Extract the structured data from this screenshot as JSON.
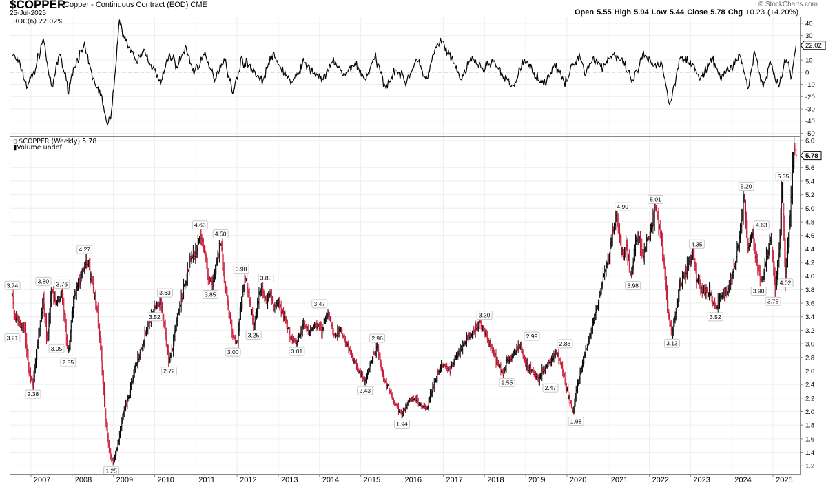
{
  "header": {
    "symbol": "$COPPER",
    "name": "Copper - Continuous Contract (EOD)",
    "exchange": "CME",
    "date": "25-Jul-2025",
    "open_label": "Open",
    "open": "5.55",
    "high_label": "High",
    "high": "5.94",
    "low_label": "Low",
    "low": "5.44",
    "close_label": "Close",
    "close": "5.78",
    "chg_label": "Chg",
    "chg": "+0.23 (+4.20%)",
    "brand": "© StockCharts.com"
  },
  "chart_data": [
    {
      "type": "line",
      "panel": "indicator",
      "title": "ROC(6) 22.02%",
      "last_value": "22.02",
      "ylim": [
        -52,
        45
      ],
      "y_ticks": [
        40,
        30,
        20,
        10,
        0,
        -10,
        -20,
        -30,
        -40,
        -50
      ],
      "y_tick_labels": [
        "40",
        "30",
        "20",
        "10",
        "0",
        "-10",
        "-20",
        "-30",
        "-40",
        "-50"
      ],
      "zero_line": "dashed",
      "x": [
        2006.55,
        2006.75,
        2006.9,
        2007.1,
        2007.3,
        2007.5,
        2007.7,
        2007.9,
        2008.1,
        2008.3,
        2008.5,
        2008.65,
        2008.75,
        2008.85,
        2008.95,
        2009.05,
        2009.15,
        2009.35,
        2009.55,
        2009.75,
        2009.95,
        2010.15,
        2010.35,
        2010.55,
        2010.75,
        2010.95,
        2011.2,
        2011.45,
        2011.7,
        2011.9,
        2012.1,
        2012.35,
        2012.6,
        2012.85,
        2013.1,
        2013.35,
        2013.6,
        2013.85,
        2014.1,
        2014.35,
        2014.6,
        2014.85,
        2015.1,
        2015.35,
        2015.6,
        2015.85,
        2016.1,
        2016.35,
        2016.6,
        2016.8,
        2016.95,
        2017.2,
        2017.45,
        2017.7,
        2017.95,
        2018.2,
        2018.45,
        2018.7,
        2018.95,
        2019.2,
        2019.45,
        2019.7,
        2019.95,
        2020.15,
        2020.3,
        2020.45,
        2020.65,
        2020.85,
        2021.1,
        2021.35,
        2021.6,
        2021.85,
        2022.1,
        2022.3,
        2022.5,
        2022.75,
        2023.0,
        2023.25,
        2023.5,
        2023.75,
        2024.0,
        2024.2,
        2024.4,
        2024.55,
        2024.75,
        2024.95,
        2025.15,
        2025.3,
        2025.45,
        2025.56
      ],
      "y": [
        15,
        5,
        -12,
        2,
        28,
        -15,
        16,
        -14,
        10,
        20,
        -5,
        -15,
        -25,
        -45,
        -35,
        5,
        42,
        22,
        8,
        18,
        4,
        -10,
        15,
        5,
        20,
        0,
        14,
        -5,
        12,
        -18,
        10,
        4,
        -8,
        14,
        2,
        -10,
        8,
        0,
        -6,
        10,
        -4,
        8,
        -6,
        12,
        -12,
        3,
        -8,
        10,
        -6,
        18,
        26,
        10,
        -6,
        12,
        2,
        10,
        -4,
        -12,
        10,
        0,
        -10,
        7,
        -10,
        6,
        14,
        0,
        12,
        4,
        15,
        8,
        -8,
        14,
        5,
        8,
        -28,
        14,
        8,
        -6,
        10,
        -4,
        5,
        14,
        -14,
        18,
        -12,
        8,
        -14,
        12,
        -2,
        22.02
      ]
    },
    {
      "type": "ohlc",
      "panel": "price",
      "title": "$COPPER (Weekly) 5.78",
      "volume_legend": "Volume undef",
      "last_value": "5.78",
      "ylim": [
        1.08,
        6.05
      ],
      "y_ticks": [
        6.0,
        5.8,
        5.6,
        5.4,
        5.2,
        5.0,
        4.8,
        4.6,
        4.4,
        4.2,
        4.0,
        3.8,
        3.6,
        3.4,
        3.2,
        3.0,
        2.8,
        2.6,
        2.4,
        2.2,
        2.0,
        1.8,
        1.6,
        1.4,
        1.2
      ],
      "y_tick_labels": [
        "6.0",
        "5.8",
        "5.6",
        "5.4",
        "5.2",
        "5.0",
        "4.8",
        "4.6",
        "4.4",
        "4.2",
        "4.0",
        "3.8",
        "3.6",
        "3.4",
        "3.2",
        "3.0",
        "2.8",
        "2.6",
        "2.4",
        "2.2",
        "2.0",
        "1.8",
        "1.6",
        "1.4",
        "1.2"
      ],
      "x_ticks": [
        2007,
        2008,
        2009,
        2010,
        2011,
        2012,
        2013,
        2014,
        2015,
        2016,
        2017,
        2018,
        2019,
        2020,
        2021,
        2022,
        2023,
        2024,
        2025
      ],
      "x_tick_labels": [
        "2007",
        "2008",
        "2009",
        "2010",
        "2011",
        "2012",
        "2013",
        "2014",
        "2015",
        "2016",
        "2017",
        "2018",
        "2019",
        "2020",
        "2021",
        "2022",
        "2023",
        "2024",
        "2025"
      ],
      "x": [
        2006.55,
        2006.6,
        2006.85,
        2006.95,
        2007.05,
        2007.15,
        2007.3,
        2007.4,
        2007.5,
        2007.62,
        2007.75,
        2007.9,
        2008.05,
        2008.2,
        2008.35,
        2008.5,
        2008.62,
        2008.72,
        2008.8,
        2008.88,
        2008.95,
        2009.0,
        2009.1,
        2009.25,
        2009.4,
        2009.55,
        2009.7,
        2009.85,
        2010.0,
        2010.15,
        2010.25,
        2010.35,
        2010.45,
        2010.55,
        2010.7,
        2010.85,
        2011.0,
        2011.1,
        2011.2,
        2011.3,
        2011.4,
        2011.5,
        2011.6,
        2011.7,
        2011.8,
        2011.9,
        2012.0,
        2012.1,
        2012.2,
        2012.3,
        2012.4,
        2012.5,
        2012.6,
        2012.7,
        2012.8,
        2012.9,
        2013.0,
        2013.15,
        2013.3,
        2013.45,
        2013.6,
        2013.75,
        2013.9,
        2014.05,
        2014.2,
        2014.35,
        2014.5,
        2014.65,
        2014.8,
        2014.95,
        2015.1,
        2015.25,
        2015.4,
        2015.55,
        2015.7,
        2015.85,
        2016.0,
        2016.15,
        2016.3,
        2016.45,
        2016.6,
        2016.75,
        2016.88,
        2017.0,
        2017.15,
        2017.3,
        2017.45,
        2017.6,
        2017.75,
        2017.9,
        2018.05,
        2018.2,
        2018.35,
        2018.45,
        2018.55,
        2018.7,
        2018.85,
        2019.0,
        2019.15,
        2019.3,
        2019.45,
        2019.6,
        2019.75,
        2019.9,
        2020.05,
        2020.15,
        2020.22,
        2020.3,
        2020.45,
        2020.6,
        2020.75,
        2020.9,
        2021.05,
        2021.2,
        2021.35,
        2021.45,
        2021.55,
        2021.7,
        2021.85,
        2022.0,
        2022.15,
        2022.25,
        2022.35,
        2022.45,
        2022.55,
        2022.62,
        2022.75,
        2022.9,
        2023.05,
        2023.15,
        2023.3,
        2023.45,
        2023.6,
        2023.75,
        2023.9,
        2024.05,
        2024.2,
        2024.3,
        2024.38,
        2024.5,
        2024.6,
        2024.72,
        2024.85,
        2024.95,
        2025.05,
        2025.15,
        2025.22,
        2025.3,
        2025.38,
        2025.45,
        2025.5,
        2025.56
      ],
      "y": [
        3.74,
        3.4,
        3.21,
        2.6,
        2.38,
        3.0,
        3.65,
        3.05,
        3.78,
        3.6,
        3.76,
        2.85,
        3.7,
        4.0,
        4.27,
        3.85,
        3.4,
        2.7,
        2.0,
        1.5,
        1.3,
        1.25,
        1.5,
        2.0,
        2.3,
        2.7,
        2.95,
        3.3,
        3.52,
        3.63,
        3.2,
        2.72,
        3.0,
        3.4,
        3.8,
        4.2,
        4.35,
        4.63,
        4.4,
        4.0,
        3.85,
        4.2,
        4.5,
        3.9,
        3.5,
        3.1,
        3.0,
        3.6,
        3.98,
        3.7,
        3.25,
        3.6,
        3.85,
        3.6,
        3.75,
        3.5,
        3.6,
        3.4,
        3.1,
        3.01,
        3.3,
        3.2,
        3.3,
        3.2,
        3.47,
        3.1,
        3.2,
        3.0,
        2.8,
        2.6,
        2.43,
        2.75,
        2.96,
        2.5,
        2.3,
        2.1,
        1.94,
        2.15,
        2.2,
        2.1,
        2.05,
        2.35,
        2.6,
        2.7,
        2.6,
        2.8,
        2.95,
        3.1,
        3.2,
        3.3,
        3.1,
        2.9,
        2.7,
        2.55,
        2.75,
        2.85,
        2.99,
        2.7,
        2.6,
        2.47,
        2.65,
        2.75,
        2.88,
        2.6,
        2.2,
        1.98,
        2.3,
        2.5,
        2.9,
        3.2,
        3.6,
        4.0,
        4.4,
        4.9,
        4.3,
        4.4,
        3.98,
        4.6,
        4.3,
        4.6,
        5.01,
        4.7,
        4.2,
        3.5,
        3.13,
        3.4,
        3.9,
        4.1,
        4.35,
        4.0,
        3.75,
        3.8,
        3.52,
        3.7,
        3.8,
        4.1,
        4.6,
        5.2,
        4.4,
        4.63,
        4.2,
        3.9,
        4.3,
        4.6,
        3.75,
        4.4,
        5.35,
        4.02,
        4.6,
        5.2,
        5.94,
        5.78
      ],
      "highlighted_points": [
        {
          "label": "3.74",
          "x": 2006.55,
          "y": 3.74
        },
        {
          "label": "3.21",
          "x": 2006.55,
          "y": 3.21
        },
        {
          "label": "2.38",
          "x": 2007.05,
          "y": 2.38
        },
        {
          "label": "3.80",
          "x": 2007.3,
          "y": 3.8
        },
        {
          "label": "3.05",
          "x": 2007.62,
          "y": 3.05
        },
        {
          "label": "3.76",
          "x": 2007.75,
          "y": 3.76
        },
        {
          "label": "2.85",
          "x": 2007.9,
          "y": 2.85
        },
        {
          "label": "4.27",
          "x": 2008.3,
          "y": 4.27
        },
        {
          "label": "1.25",
          "x": 2008.95,
          "y": 1.25
        },
        {
          "label": "3.52",
          "x": 2010.0,
          "y": 3.52
        },
        {
          "label": "3.63",
          "x": 2010.25,
          "y": 3.63
        },
        {
          "label": "2.72",
          "x": 2010.35,
          "y": 2.72
        },
        {
          "label": "4.63",
          "x": 2011.1,
          "y": 4.63
        },
        {
          "label": "4.50",
          "x": 2011.6,
          "y": 4.5
        },
        {
          "label": "3.85",
          "x": 2011.35,
          "y": 3.85
        },
        {
          "label": "3.00",
          "x": 2011.9,
          "y": 3.0
        },
        {
          "label": "3.98",
          "x": 2012.1,
          "y": 3.98
        },
        {
          "label": "3.25",
          "x": 2012.4,
          "y": 3.25
        },
        {
          "label": "3.85",
          "x": 2012.7,
          "y": 3.85
        },
        {
          "label": "3.01",
          "x": 2013.45,
          "y": 3.01
        },
        {
          "label": "3.47",
          "x": 2014.0,
          "y": 3.47
        },
        {
          "label": "2.96",
          "x": 2015.4,
          "y": 2.96
        },
        {
          "label": "2.43",
          "x": 2015.1,
          "y": 2.43
        },
        {
          "label": "1.94",
          "x": 2016.0,
          "y": 1.94
        },
        {
          "label": "3.30",
          "x": 2018.0,
          "y": 3.3
        },
        {
          "label": "2.55",
          "x": 2018.55,
          "y": 2.55
        },
        {
          "label": "2.99",
          "x": 2019.15,
          "y": 2.99
        },
        {
          "label": "2.47",
          "x": 2019.6,
          "y": 2.47
        },
        {
          "label": "2.88",
          "x": 2019.95,
          "y": 2.88
        },
        {
          "label": "1.98",
          "x": 2020.22,
          "y": 1.98
        },
        {
          "label": "4.90",
          "x": 2021.35,
          "y": 4.9
        },
        {
          "label": "3.98",
          "x": 2021.6,
          "y": 3.98
        },
        {
          "label": "5.01",
          "x": 2022.15,
          "y": 5.01
        },
        {
          "label": "3.13",
          "x": 2022.55,
          "y": 3.13
        },
        {
          "label": "4.35",
          "x": 2023.15,
          "y": 4.35
        },
        {
          "label": "3.52",
          "x": 2023.6,
          "y": 3.52
        },
        {
          "label": "5.20",
          "x": 2024.35,
          "y": 5.2
        },
        {
          "label": "4.63",
          "x": 2024.72,
          "y": 4.63
        },
        {
          "label": "3.90",
          "x": 2024.65,
          "y": 3.9
        },
        {
          "label": "3.75",
          "x": 2025.0,
          "y": 3.75
        },
        {
          "label": "5.35",
          "x": 2025.25,
          "y": 5.35
        },
        {
          "label": "4.02",
          "x": 2025.3,
          "y": 4.02
        }
      ]
    }
  ]
}
